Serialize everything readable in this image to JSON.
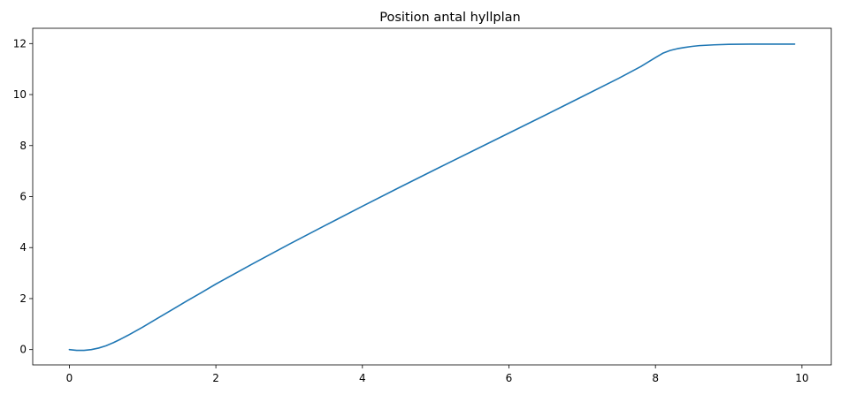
{
  "chart_data": {
    "type": "line",
    "title": "Position antal hyllplan",
    "xlabel": "",
    "ylabel": "",
    "xlim": [
      -0.5,
      10.4
    ],
    "ylim": [
      -0.6,
      12.6
    ],
    "x_ticks": [
      0,
      2,
      4,
      6,
      8,
      10
    ],
    "y_ticks": [
      0,
      2,
      4,
      6,
      8,
      10,
      12
    ],
    "x_tick_labels": [
      "0",
      "2",
      "4",
      "6",
      "8",
      "10"
    ],
    "y_tick_labels": [
      "0",
      "2",
      "4",
      "6",
      "8",
      "10",
      "12"
    ],
    "grid": false,
    "legend": "none",
    "series": [
      {
        "color": "#1f77b4",
        "x": [
          0.0,
          0.1,
          0.2,
          0.3,
          0.4,
          0.5,
          0.6,
          0.7,
          0.8,
          0.9,
          1.0,
          1.2,
          1.4,
          1.6,
          1.8,
          2.0,
          2.5,
          3.0,
          3.5,
          4.0,
          4.5,
          5.0,
          5.5,
          6.0,
          6.5,
          7.0,
          7.5,
          7.8,
          8.0,
          8.1,
          8.2,
          8.3,
          8.4,
          8.5,
          8.6,
          8.8,
          9.0,
          9.3,
          9.6,
          9.9
        ],
        "y": [
          0.0,
          -0.03,
          -0.03,
          0.0,
          0.06,
          0.15,
          0.27,
          0.41,
          0.56,
          0.72,
          0.88,
          1.22,
          1.56,
          1.9,
          2.23,
          2.57,
          3.36,
          4.13,
          4.88,
          5.62,
          6.35,
          7.07,
          7.78,
          8.49,
          9.2,
          9.92,
          10.64,
          11.1,
          11.45,
          11.62,
          11.73,
          11.8,
          11.85,
          11.89,
          11.92,
          11.95,
          11.97,
          11.98,
          11.98,
          11.98
        ]
      }
    ]
  }
}
